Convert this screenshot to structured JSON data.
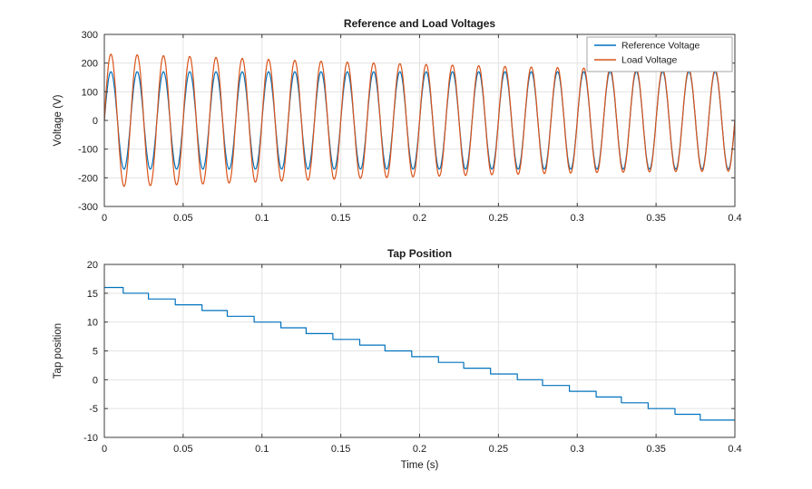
{
  "figure": {
    "background": "#ffffff",
    "axis_color": "#3b3b3b",
    "grid_color": "#e3e3e3",
    "text_color": "#1a1a1a",
    "legend_border_color": "#a6a6a6"
  },
  "chart_data": [
    {
      "type": "line",
      "title": "Reference and Load Voltages",
      "xlabel": "",
      "ylabel": "Voltage (V)",
      "xlim": [
        0,
        0.4
      ],
      "ylim": [
        -300,
        300
      ],
      "xticks": [
        0,
        0.05,
        0.1,
        0.15,
        0.2,
        0.25,
        0.3,
        0.35,
        0.4
      ],
      "xtick_labels": [
        "0",
        "0.05",
        "0.1",
        "0.15",
        "0.2",
        "0.25",
        "0.3",
        "0.35",
        "0.4"
      ],
      "yticks": [
        -300,
        -200,
        -100,
        0,
        100,
        200,
        300
      ],
      "ytick_labels": [
        "-300",
        "-200",
        "-100",
        "0",
        "100",
        "200",
        "300"
      ],
      "grid": true,
      "legend": {
        "position": "northeast",
        "entries": [
          "Reference Voltage",
          "Load Voltage"
        ]
      },
      "series": [
        {
          "name": "Reference Voltage",
          "color": "#0072BD",
          "waveform": "sine",
          "frequency_hz": 60,
          "phase_rad": 0,
          "amplitude_envelope": [
            [
              0,
              170
            ],
            [
              0.4,
              170
            ]
          ]
        },
        {
          "name": "Load Voltage",
          "color": "#D95319",
          "waveform": "sine",
          "frequency_hz": 60,
          "phase_rad": 0,
          "amplitude_envelope": [
            [
              0,
              232
            ],
            [
              0.05,
              224
            ],
            [
              0.1,
              214
            ],
            [
              0.15,
              204
            ],
            [
              0.2,
              196
            ],
            [
              0.25,
              189
            ],
            [
              0.3,
              183
            ],
            [
              0.35,
              179
            ],
            [
              0.4,
              177
            ]
          ]
        }
      ]
    },
    {
      "type": "step",
      "title": "Tap Position",
      "xlabel": "Time (s)",
      "ylabel": "Tap position",
      "xlim": [
        0,
        0.4
      ],
      "ylim": [
        -10,
        20
      ],
      "xticks": [
        0,
        0.05,
        0.1,
        0.15,
        0.2,
        0.25,
        0.3,
        0.35,
        0.4
      ],
      "xtick_labels": [
        "0",
        "0.05",
        "0.1",
        "0.15",
        "0.2",
        "0.25",
        "0.3",
        "0.35",
        "0.4"
      ],
      "yticks": [
        -10,
        -5,
        0,
        5,
        10,
        15,
        20
      ],
      "ytick_labels": [
        "-10",
        "-5",
        "0",
        "5",
        "10",
        "15",
        "20"
      ],
      "grid": true,
      "series": [
        {
          "name": "Tap Position",
          "color": "#0072BD",
          "steps": [
            [
              0,
              16
            ],
            [
              0.012,
              15
            ],
            [
              0.028,
              14
            ],
            [
              0.045,
              13
            ],
            [
              0.062,
              12
            ],
            [
              0.078,
              11
            ],
            [
              0.095,
              10
            ],
            [
              0.112,
              9
            ],
            [
              0.128,
              8
            ],
            [
              0.145,
              7
            ],
            [
              0.162,
              6
            ],
            [
              0.178,
              5
            ],
            [
              0.195,
              4
            ],
            [
              0.212,
              3
            ],
            [
              0.228,
              2
            ],
            [
              0.245,
              1
            ],
            [
              0.262,
              0
            ],
            [
              0.278,
              -1
            ],
            [
              0.295,
              -2
            ],
            [
              0.312,
              -3
            ],
            [
              0.328,
              -4
            ],
            [
              0.345,
              -5
            ],
            [
              0.362,
              -6
            ],
            [
              0.378,
              -7
            ]
          ],
          "end_time": 0.4
        }
      ]
    }
  ]
}
